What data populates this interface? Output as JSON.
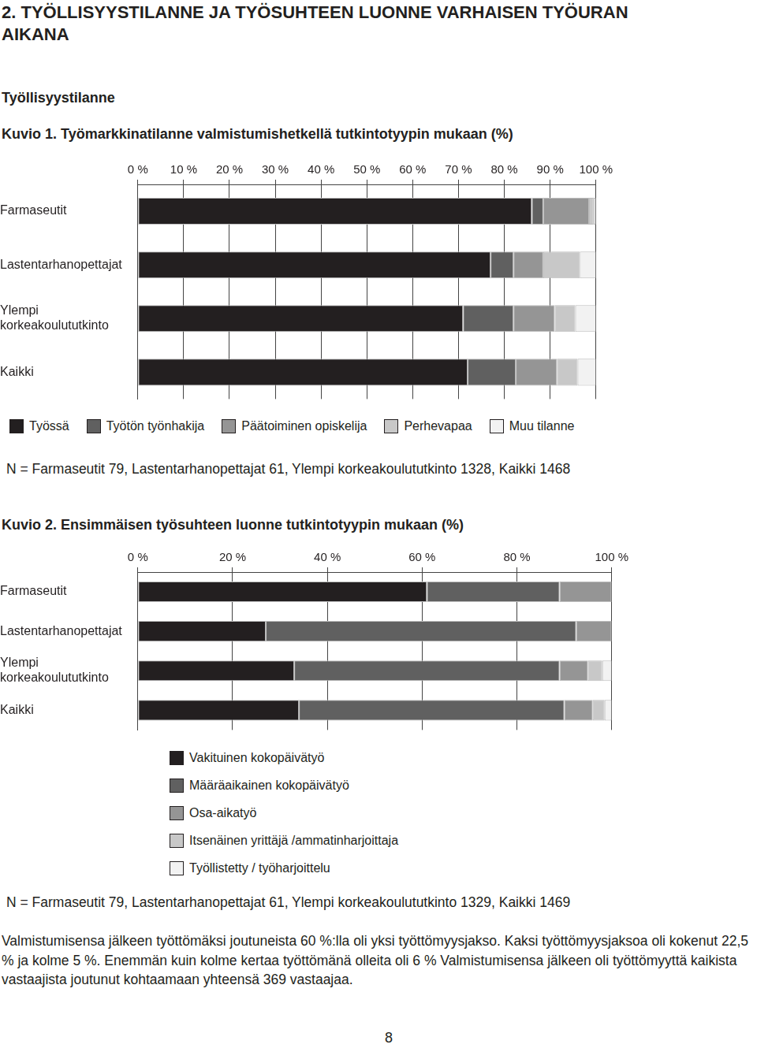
{
  "heading": "2. TYÖLLISYYSTILANNE JA TYÖSUHTEEN LUONNE VARHAISEN TYÖURAN AIKANA",
  "section": "Työllisyystilanne",
  "chart_data": [
    {
      "type": "bar",
      "title": "Kuvio 1. Työmarkkinatilanne valmistumishetkellä tutkintotyypin mukaan (%)",
      "orientation": "horizontal",
      "stacked": true,
      "grid": true,
      "legend": "bottom",
      "categories": [
        "Farmaseutit",
        "Lastentarhanopettajat",
        "Ylempi korkeakoulututkinto",
        "Kaikki"
      ],
      "series": [
        {
          "name": "Työssä",
          "color": "#231f20",
          "values": [
            86,
            77,
            71,
            72
          ]
        },
        {
          "name": "Työtön työnhakija",
          "color": "#606060",
          "values": [
            2.5,
            5,
            11,
            10.5
          ]
        },
        {
          "name": "Päätoiminen opiskelija",
          "color": "#959595",
          "values": [
            10,
            6.5,
            9,
            9
          ]
        },
        {
          "name": "Perhevapaa",
          "color": "#c8c8c8",
          "values": [
            1,
            8,
            4.5,
            4.5
          ]
        },
        {
          "name": "Muu tilanne",
          "color": "#f2f2f2",
          "values": [
            0.5,
            3.5,
            4.5,
            4
          ]
        }
      ],
      "xlim": [
        0,
        100
      ],
      "xticks": [
        {
          "value": 0,
          "label": "0 %"
        },
        {
          "value": 10,
          "label": "10 %"
        },
        {
          "value": 20,
          "label": "20 %"
        },
        {
          "value": 30,
          "label": "30 %"
        },
        {
          "value": 40,
          "label": "40 %"
        },
        {
          "value": 50,
          "label": "50 %"
        },
        {
          "value": 60,
          "label": "60 %"
        },
        {
          "value": 70,
          "label": "70 %"
        },
        {
          "value": 80,
          "label": "80 %"
        },
        {
          "value": 90,
          "label": "90 %"
        },
        {
          "value": 100,
          "label": "100 %"
        }
      ],
      "note": "N = Farmaseutit 79, Lastentarhanopettajat 61, Ylempi korkeakoulututkinto 1328, Kaikki 1468"
    },
    {
      "type": "bar",
      "title": "Kuvio 2. Ensimmäisen työsuhteen luonne tutkintotyypin mukaan (%)",
      "orientation": "horizontal",
      "stacked": true,
      "grid": true,
      "legend": "bottom",
      "categories": [
        "Farmaseutit",
        "Lastentarhanopettajat",
        "Ylempi korkeakoulututkinto",
        "Kaikki"
      ],
      "series": [
        {
          "name": "Vakituinen kokopäivätyö",
          "color": "#231f20",
          "values": [
            61,
            27,
            33,
            34
          ]
        },
        {
          "name": "Määräaikainen kokopäivätyö",
          "color": "#606060",
          "values": [
            28,
            65.5,
            56,
            56
          ]
        },
        {
          "name": "Osa-aikatyö",
          "color": "#959595",
          "values": [
            11,
            7.5,
            6,
            6
          ]
        },
        {
          "name": "Itsenäinen yrittäjä /ammatinharjoittaja",
          "color": "#c8c8c8",
          "values": [
            0,
            0,
            3,
            2.5
          ]
        },
        {
          "name": "Työllistetty / työharjoittelu",
          "color": "#f2f2f2",
          "values": [
            0,
            0,
            2,
            1.5
          ]
        }
      ],
      "xlim": [
        0,
        100
      ],
      "xticks": [
        {
          "value": 0,
          "label": "0 %"
        },
        {
          "value": 20,
          "label": "20 %"
        },
        {
          "value": 40,
          "label": "40 %"
        },
        {
          "value": 60,
          "label": "60 %"
        },
        {
          "value": 80,
          "label": "80 %"
        },
        {
          "value": 100,
          "label": "100 %"
        }
      ],
      "note": "N = Farmaseutit 79, Lastentarhanopettajat 61, Ylempi korkeakoulututkinto 1329, Kaikki 1469"
    }
  ],
  "paragraph": "Valmistumisensa jälkeen työttömäksi joutuneista 60 %:lla oli yksi työttömyysjakso. Kaksi työttömyysjaksoa oli kokenut 22,5 % ja kolme 5 %. Enemmän kuin kolme kertaa työttömänä olleita oli 6 % Valmistumisensa jälkeen oli työttömyyttä kaikista vastaajista joutunut kohtaamaan yhteensä 369 vastaajaa.",
  "page_number": "8"
}
